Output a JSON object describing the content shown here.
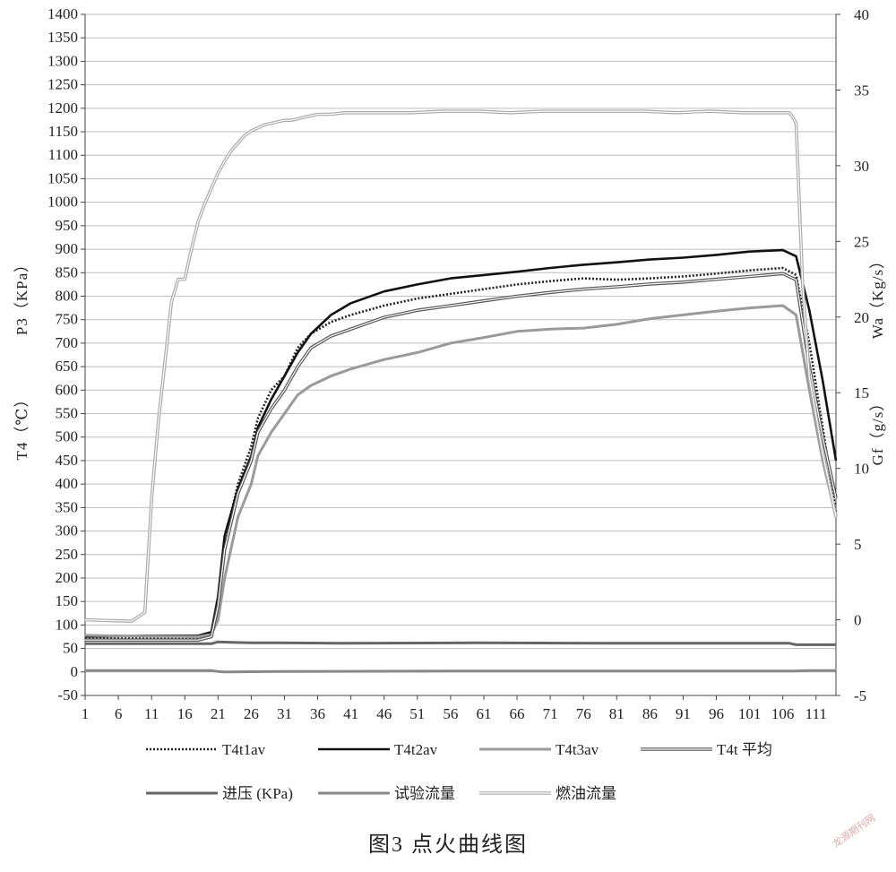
{
  "chart_data": {
    "type": "line",
    "title": "",
    "caption": "图3 点火曲线图",
    "xlabel": "",
    "x_ticks": [
      "1",
      "6",
      "11",
      "16",
      "21",
      "26",
      "31",
      "36",
      "41",
      "46",
      "51",
      "56",
      "61",
      "66",
      "71",
      "76",
      "81",
      "86",
      "91",
      "96",
      "101",
      "106",
      "111"
    ],
    "xlim": [
      1,
      114
    ],
    "y_left": {
      "labels": [
        "P3（KPa）",
        "T4（℃）"
      ],
      "ylim": [
        -50,
        1400
      ],
      "ticks": [
        -50,
        0,
        50,
        100,
        150,
        200,
        250,
        300,
        350,
        400,
        450,
        500,
        550,
        600,
        650,
        700,
        750,
        800,
        850,
        900,
        950,
        1000,
        1050,
        1100,
        1150,
        1200,
        1250,
        1300,
        1350,
        1400
      ]
    },
    "y_right": {
      "labels": [
        "Wa（Kg/s）",
        "Gf（g/s）"
      ],
      "ylim": [
        -5,
        40
      ],
      "ticks": [
        -5,
        0,
        5,
        10,
        15,
        20,
        25,
        30,
        35,
        40
      ]
    },
    "grid": true,
    "legend_position": "bottom",
    "legend": [
      "T4t1av",
      "T4t2av",
      "T4t3av",
      "T4t 平均",
      "进压 (KPa)",
      "试验流量",
      "燃油流量"
    ],
    "series": [
      {
        "name": "T4t1av",
        "axis": "left",
        "color": "#222222",
        "style": "dotted",
        "x": [
          1,
          10,
          18,
          20,
          21,
          22,
          24,
          26,
          27,
          29,
          31,
          33,
          35,
          38,
          41,
          46,
          51,
          56,
          61,
          66,
          71,
          76,
          81,
          86,
          91,
          96,
          101,
          106,
          108,
          110,
          112,
          114
        ],
        "y": [
          70,
          72,
          73,
          80,
          150,
          280,
          400,
          480,
          540,
          600,
          630,
          690,
          720,
          745,
          760,
          780,
          795,
          805,
          815,
          825,
          832,
          838,
          835,
          838,
          842,
          848,
          855,
          860,
          845,
          700,
          520,
          340
        ]
      },
      {
        "name": "T4t2av",
        "axis": "left",
        "color": "#111111",
        "style": "solid",
        "x": [
          1,
          10,
          18,
          20,
          21,
          22,
          24,
          26,
          27,
          29,
          31,
          33,
          35,
          38,
          41,
          46,
          51,
          56,
          61,
          66,
          71,
          76,
          81,
          86,
          91,
          96,
          101,
          106,
          108,
          110,
          112,
          114
        ],
        "y": [
          75,
          77,
          77,
          85,
          160,
          290,
          390,
          460,
          520,
          580,
          630,
          680,
          720,
          760,
          785,
          810,
          825,
          838,
          845,
          852,
          860,
          867,
          872,
          878,
          882,
          888,
          895,
          898,
          885,
          770,
          620,
          450
        ]
      },
      {
        "name": "T4t3av",
        "axis": "left",
        "color": "#9a9a9a",
        "style": "solid",
        "x": [
          1,
          10,
          18,
          20,
          21,
          22,
          24,
          26,
          27,
          29,
          31,
          33,
          35,
          38,
          41,
          46,
          51,
          56,
          61,
          66,
          71,
          76,
          81,
          86,
          91,
          96,
          101,
          106,
          108,
          110,
          112,
          114
        ],
        "y": [
          78,
          76,
          75,
          80,
          110,
          200,
          330,
          400,
          460,
          510,
          550,
          590,
          610,
          630,
          645,
          665,
          680,
          700,
          712,
          725,
          730,
          732,
          740,
          752,
          760,
          768,
          775,
          780,
          760,
          600,
          450,
          330
        ]
      },
      {
        "name": "T4t 平均",
        "axis": "left",
        "color": "#555555",
        "style": "double",
        "x": [
          1,
          10,
          18,
          20,
          21,
          22,
          24,
          26,
          27,
          29,
          31,
          33,
          35,
          38,
          41,
          46,
          51,
          56,
          61,
          66,
          71,
          76,
          81,
          86,
          91,
          96,
          101,
          106,
          108,
          110,
          112,
          114
        ],
        "y": [
          68,
          68,
          68,
          75,
          140,
          260,
          380,
          450,
          510,
          560,
          600,
          650,
          690,
          715,
          730,
          755,
          770,
          780,
          790,
          800,
          808,
          815,
          820,
          826,
          830,
          836,
          842,
          848,
          835,
          650,
          500,
          370
        ]
      },
      {
        "name": "进压 (KPa)",
        "axis": "left",
        "color": "#666666",
        "style": "solid",
        "x": [
          1,
          10,
          20,
          21,
          23,
          26,
          30,
          40,
          60,
          80,
          100,
          107,
          108,
          110,
          114
        ],
        "y": [
          60,
          60,
          60,
          64,
          63,
          62,
          62,
          61,
          62,
          61,
          61,
          61,
          58,
          58,
          58
        ]
      },
      {
        "name": "试验流量",
        "axis": "left",
        "color": "#888888",
        "style": "solid",
        "x": [
          1,
          20,
          21,
          22,
          30,
          60,
          100,
          108,
          110,
          114
        ],
        "y": [
          3,
          3,
          1,
          0,
          1,
          2,
          2,
          2,
          3,
          3
        ]
      },
      {
        "name": "燃油流量",
        "axis": "right",
        "color": "#aaaaaa",
        "style": "double",
        "x": [
          1,
          8,
          9,
          10,
          11,
          12,
          13,
          14,
          15,
          16,
          17,
          18,
          19,
          20,
          21,
          22,
          23,
          24,
          25,
          26,
          27,
          28,
          29,
          30,
          31,
          32,
          34,
          36,
          38,
          40,
          45,
          50,
          55,
          60,
          65,
          70,
          75,
          80,
          85,
          90,
          95,
          100,
          105,
          106,
          107,
          107.5,
          108,
          109,
          110,
          112,
          114
        ],
        "y": [
          0,
          -0.1,
          0.2,
          0.5,
          8,
          13,
          17,
          21,
          22.5,
          22.5,
          24.5,
          26.3,
          27.5,
          28.5,
          29.5,
          30.3,
          31,
          31.5,
          32,
          32.3,
          32.5,
          32.7,
          32.8,
          32.9,
          33,
          33,
          33.2,
          33.4,
          33.4,
          33.5,
          33.5,
          33.5,
          33.6,
          33.6,
          33.5,
          33.6,
          33.6,
          33.6,
          33.6,
          33.5,
          33.6,
          33.5,
          33.5,
          33.5,
          33.5,
          33.2,
          32.8,
          22,
          16,
          11,
          6.8
        ]
      }
    ]
  },
  "watermark": "龙源期刊网"
}
